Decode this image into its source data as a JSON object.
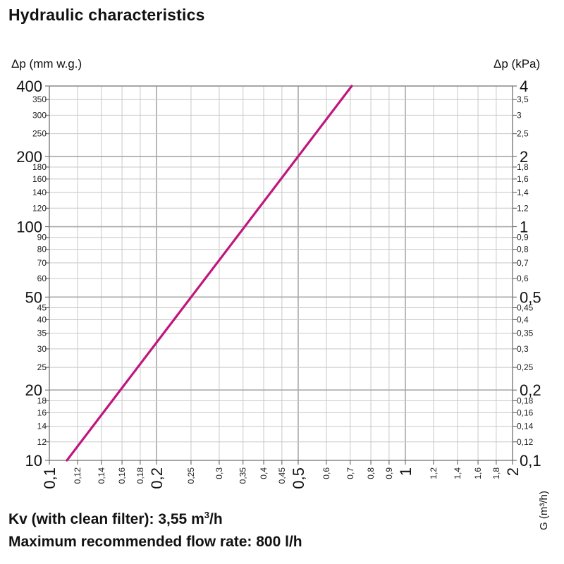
{
  "title": "Hydraulic characteristics",
  "footer": {
    "kv_prefix": "Kv (with clean filter): 3,55 m",
    "kv_sup": "3",
    "kv_suffix": "/h",
    "max_flow": "Maximum recommended flow rate: 800 l/h"
  },
  "colors": {
    "curve": "#c0167d",
    "grid": "#c8c8c8",
    "grid_major": "#a8a8a8"
  },
  "chart_data": {
    "type": "line",
    "x_scale": "log",
    "y_scale": "log",
    "xlabel": "G (m³/h)",
    "ylabel_left": "Δp (mm w.g.)",
    "ylabel_right": "Δp (kPa)",
    "xlim": [
      0.1,
      2
    ],
    "ylim": [
      10,
      400
    ],
    "grid": true,
    "x_ticks": [
      {
        "v": 0.1,
        "l": "0,1",
        "major": true
      },
      {
        "v": 0.12,
        "l": "0,12"
      },
      {
        "v": 0.14,
        "l": "0,14"
      },
      {
        "v": 0.16,
        "l": "0,16"
      },
      {
        "v": 0.18,
        "l": "0,18"
      },
      {
        "v": 0.2,
        "l": "0,2",
        "major": true
      },
      {
        "v": 0.25,
        "l": "0,25"
      },
      {
        "v": 0.3,
        "l": "0,3"
      },
      {
        "v": 0.35,
        "l": "0,35"
      },
      {
        "v": 0.4,
        "l": "0,4"
      },
      {
        "v": 0.45,
        "l": "0,45"
      },
      {
        "v": 0.5,
        "l": "0,5",
        "major": true
      },
      {
        "v": 0.6,
        "l": "0,6"
      },
      {
        "v": 0.7,
        "l": "0,7"
      },
      {
        "v": 0.8,
        "l": "0,8"
      },
      {
        "v": 0.9,
        "l": "0,9"
      },
      {
        "v": 1,
        "l": "1",
        "major": true
      },
      {
        "v": 1.2,
        "l": "1,2"
      },
      {
        "v": 1.4,
        "l": "1,4"
      },
      {
        "v": 1.6,
        "l": "1,6"
      },
      {
        "v": 1.8,
        "l": "1,8"
      },
      {
        "v": 2,
        "l": "2",
        "major": true
      }
    ],
    "y_ticks_left": [
      {
        "v": 10,
        "l": "10",
        "major": true
      },
      {
        "v": 12,
        "l": "12"
      },
      {
        "v": 14,
        "l": "14"
      },
      {
        "v": 16,
        "l": "16"
      },
      {
        "v": 18,
        "l": "18"
      },
      {
        "v": 20,
        "l": "20",
        "major": true
      },
      {
        "v": 25,
        "l": "25"
      },
      {
        "v": 30,
        "l": "30"
      },
      {
        "v": 35,
        "l": "35"
      },
      {
        "v": 40,
        "l": "40"
      },
      {
        "v": 45,
        "l": "45"
      },
      {
        "v": 50,
        "l": "50",
        "major": true
      },
      {
        "v": 60,
        "l": "60"
      },
      {
        "v": 70,
        "l": "70"
      },
      {
        "v": 80,
        "l": "80"
      },
      {
        "v": 90,
        "l": "90"
      },
      {
        "v": 100,
        "l": "100",
        "major": true
      },
      {
        "v": 120,
        "l": "120"
      },
      {
        "v": 140,
        "l": "140"
      },
      {
        "v": 160,
        "l": "160"
      },
      {
        "v": 180,
        "l": "180"
      },
      {
        "v": 200,
        "l": "200",
        "major": true
      },
      {
        "v": 250,
        "l": "250"
      },
      {
        "v": 300,
        "l": "300"
      },
      {
        "v": 350,
        "l": "350"
      },
      {
        "v": 400,
        "l": "400",
        "major": true
      }
    ],
    "y_ticks_right": [
      {
        "v": 10,
        "l": "0,1",
        "major": true
      },
      {
        "v": 12,
        "l": "0,12"
      },
      {
        "v": 14,
        "l": "0,14"
      },
      {
        "v": 16,
        "l": "0,16"
      },
      {
        "v": 18,
        "l": "0,18"
      },
      {
        "v": 20,
        "l": "0,2",
        "major": true
      },
      {
        "v": 25,
        "l": "0,25"
      },
      {
        "v": 30,
        "l": "0,3"
      },
      {
        "v": 35,
        "l": "0,35"
      },
      {
        "v": 40,
        "l": "0,4"
      },
      {
        "v": 45,
        "l": "0,45"
      },
      {
        "v": 50,
        "l": "0,5",
        "major": true
      },
      {
        "v": 60,
        "l": "0,6"
      },
      {
        "v": 70,
        "l": "0,7"
      },
      {
        "v": 80,
        "l": "0,8"
      },
      {
        "v": 90,
        "l": "0,9"
      },
      {
        "v": 100,
        "l": "1",
        "major": true
      },
      {
        "v": 120,
        "l": "1,2"
      },
      {
        "v": 140,
        "l": "1,4"
      },
      {
        "v": 160,
        "l": "1,6"
      },
      {
        "v": 180,
        "l": "1,8"
      },
      {
        "v": 200,
        "l": "2",
        "major": true
      },
      {
        "v": 250,
        "l": "2,5"
      },
      {
        "v": 300,
        "l": "3"
      },
      {
        "v": 350,
        "l": "3,5"
      },
      {
        "v": 400,
        "l": "4",
        "major": true
      }
    ],
    "series": [
      {
        "points": [
          {
            "x": 0.112,
            "y": 10
          },
          {
            "x": 0.707,
            "y": 400
          }
        ]
      }
    ]
  }
}
